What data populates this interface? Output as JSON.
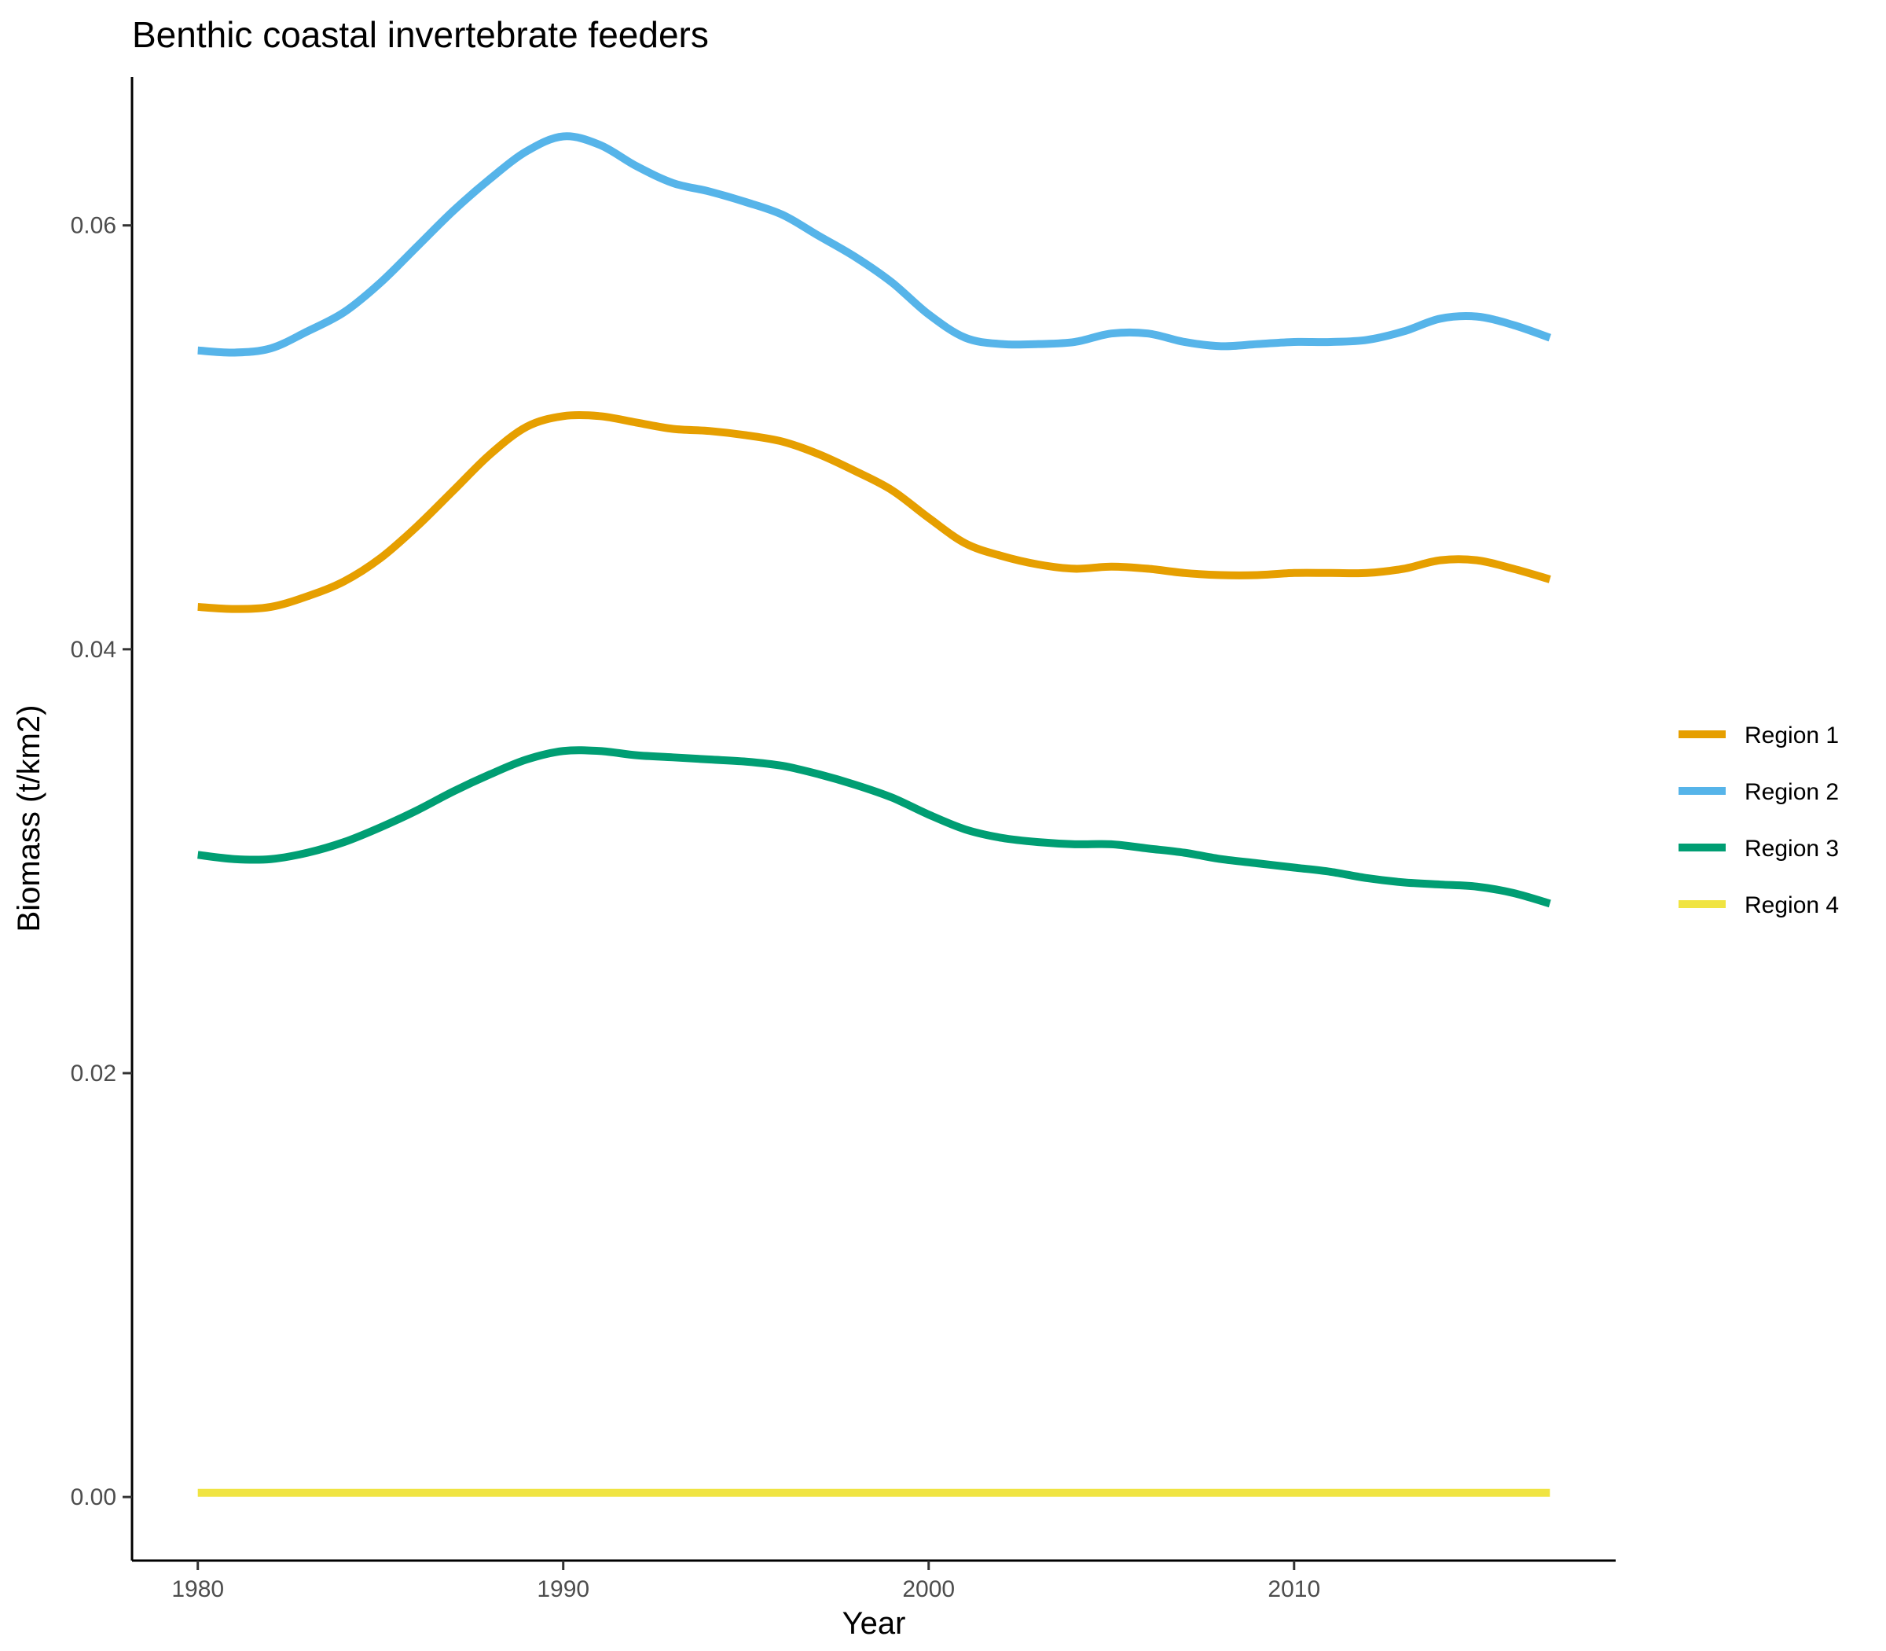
{
  "chart_data": {
    "type": "line",
    "title": "Benthic coastal invertebrate feeders",
    "xlabel": "Year",
    "ylabel": "Biomass (t/km2)",
    "xlim": [
      1978.2,
      2018.8
    ],
    "ylim": [
      -0.003,
      0.067
    ],
    "x_ticks": [
      1980,
      1990,
      2000,
      2010
    ],
    "y_ticks": [
      0.0,
      0.02,
      0.04,
      0.06
    ],
    "x_tick_labels": [
      "1980",
      "1990",
      "2000",
      "2010"
    ],
    "y_tick_labels": [
      "0.00",
      "0.02",
      "0.04",
      "0.06"
    ],
    "grid": false,
    "legend_position": "right",
    "x": [
      1980,
      1981,
      1982,
      1983,
      1984,
      1985,
      1986,
      1987,
      1988,
      1989,
      1990,
      1991,
      1992,
      1993,
      1994,
      1995,
      1996,
      1997,
      1998,
      1999,
      2000,
      2001,
      2002,
      2003,
      2004,
      2005,
      2006,
      2007,
      2008,
      2009,
      2010,
      2011,
      2012,
      2013,
      2014,
      2015,
      2016,
      2017
    ],
    "series": [
      {
        "name": "Region 1",
        "color": "#E69F00",
        "values": [
          0.042,
          0.0419,
          0.042,
          0.0425,
          0.0432,
          0.0443,
          0.0458,
          0.0475,
          0.0492,
          0.0505,
          0.051,
          0.051,
          0.0507,
          0.0504,
          0.0503,
          0.0501,
          0.0498,
          0.0492,
          0.0484,
          0.0475,
          0.0462,
          0.045,
          0.0444,
          0.044,
          0.0438,
          0.0439,
          0.0438,
          0.0436,
          0.0435,
          0.0435,
          0.0436,
          0.0436,
          0.0436,
          0.0438,
          0.0442,
          0.0442,
          0.0438,
          0.0433
        ]
      },
      {
        "name": "Region 2",
        "color": "#56B4E9",
        "values": [
          0.0541,
          0.054,
          0.0542,
          0.055,
          0.0559,
          0.0573,
          0.059,
          0.0607,
          0.0622,
          0.0635,
          0.0642,
          0.0638,
          0.0628,
          0.062,
          0.0616,
          0.0611,
          0.0605,
          0.0595,
          0.0585,
          0.0573,
          0.0558,
          0.0547,
          0.0544,
          0.0544,
          0.0545,
          0.0549,
          0.0549,
          0.0545,
          0.0543,
          0.0544,
          0.0545,
          0.0545,
          0.0546,
          0.055,
          0.0556,
          0.0557,
          0.0553,
          0.0547
        ]
      },
      {
        "name": "Region 3",
        "color": "#009E73",
        "values": [
          0.0303,
          0.0301,
          0.0301,
          0.0304,
          0.0309,
          0.0316,
          0.0324,
          0.0333,
          0.0341,
          0.0348,
          0.0352,
          0.0352,
          0.035,
          0.0349,
          0.0348,
          0.0347,
          0.0345,
          0.0341,
          0.0336,
          0.033,
          0.0322,
          0.0315,
          0.0311,
          0.0309,
          0.0308,
          0.0308,
          0.0306,
          0.0304,
          0.0301,
          0.0299,
          0.0297,
          0.0295,
          0.0292,
          0.029,
          0.0289,
          0.0288,
          0.0285,
          0.028
        ]
      },
      {
        "name": "Region 4",
        "color": "#F0E442",
        "values": [
          0.0002,
          0.0002,
          0.0002,
          0.0002,
          0.0002,
          0.0002,
          0.0002,
          0.0002,
          0.0002,
          0.0002,
          0.0002,
          0.0002,
          0.0002,
          0.0002,
          0.0002,
          0.0002,
          0.0002,
          0.0002,
          0.0002,
          0.0002,
          0.0002,
          0.0002,
          0.0002,
          0.0002,
          0.0002,
          0.0002,
          0.0002,
          0.0002,
          0.0002,
          0.0002,
          0.0002,
          0.0002,
          0.0002,
          0.0002,
          0.0002,
          0.0002,
          0.0002,
          0.0002
        ]
      }
    ]
  }
}
